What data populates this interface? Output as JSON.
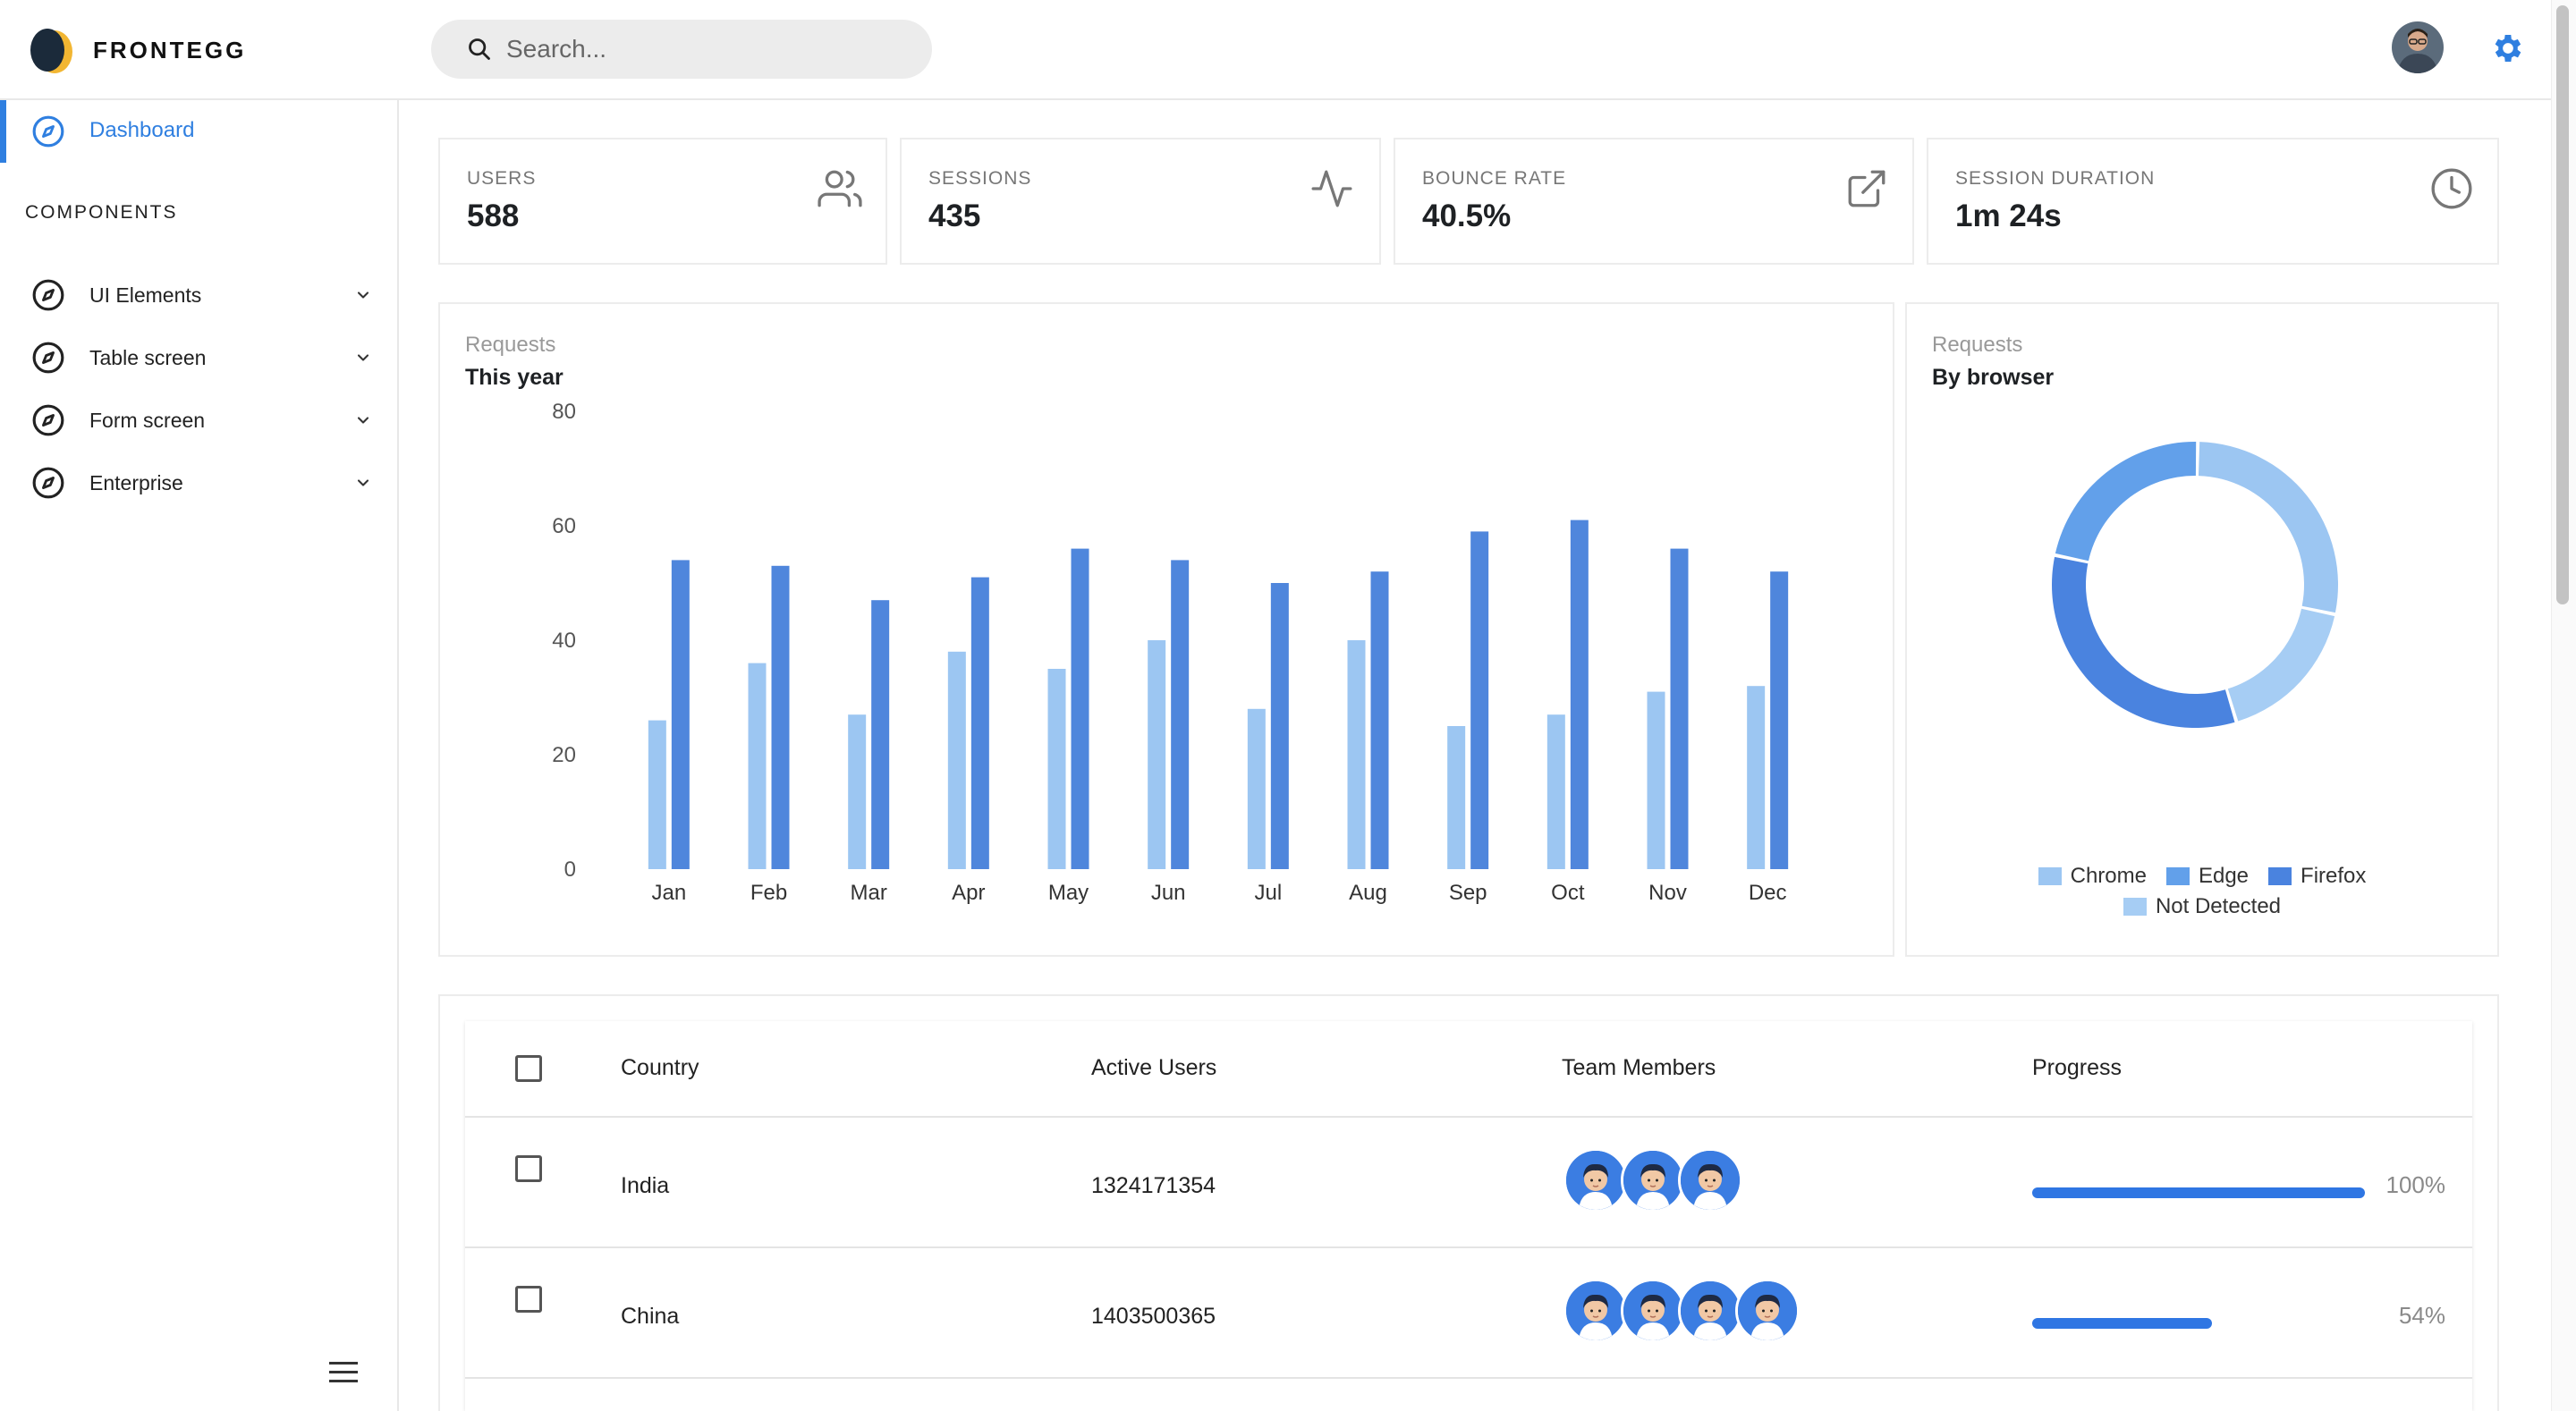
{
  "header": {
    "brand": "FRONTEGG",
    "search_placeholder": "Search..."
  },
  "sidebar": {
    "active_item": "Dashboard",
    "section_title": "COMPONENTS",
    "items": [
      {
        "label": "UI Elements"
      },
      {
        "label": "Table screen"
      },
      {
        "label": "Form screen"
      },
      {
        "label": "Enterprise"
      }
    ]
  },
  "stats": [
    {
      "label": "USERS",
      "value": "588",
      "icon": "users-icon"
    },
    {
      "label": "SESSIONS",
      "value": "435",
      "icon": "activity-icon"
    },
    {
      "label": "BOUNCE RATE",
      "value": "40.5%",
      "icon": "external-link-icon"
    },
    {
      "label": "SESSION DURATION",
      "value": "1m 24s",
      "icon": "clock-icon"
    }
  ],
  "requests_chart": {
    "subtitle": "Requests",
    "title": "This year"
  },
  "browser_chart": {
    "subtitle": "Requests",
    "title": "By browser"
  },
  "chart_data": [
    {
      "type": "bar",
      "title": "This year",
      "categories": [
        "Jan",
        "Feb",
        "Mar",
        "Apr",
        "May",
        "Jun",
        "Jul",
        "Aug",
        "Sep",
        "Oct",
        "Nov",
        "Dec"
      ],
      "series": [
        {
          "color": "#9cc6f2",
          "values": [
            26,
            36,
            27,
            38,
            35,
            40,
            28,
            40,
            25,
            27,
            31,
            32
          ]
        },
        {
          "color": "#4f86dc",
          "values": [
            54,
            53,
            47,
            51,
            56,
            54,
            50,
            52,
            59,
            61,
            56,
            52
          ]
        }
      ],
      "yticks": [
        0,
        20,
        40,
        60,
        80
      ],
      "ylim": [
        0,
        80
      ],
      "grid": false
    },
    {
      "type": "pie",
      "title": "By browser",
      "labels": [
        "Chrome",
        "Edge",
        "Firefox",
        "Not Detected"
      ],
      "values": [
        28,
        22,
        33,
        17
      ],
      "colors": [
        "#9cc6f2",
        "#62a0ea",
        "#4a83df",
        "#a6cdf4"
      ],
      "donut": true,
      "legend": "bottom"
    }
  ],
  "table": {
    "headers": [
      "Country",
      "Active Users",
      "Team Members",
      "Progress"
    ],
    "rows": [
      {
        "country": "India",
        "active_users": "1324171354",
        "team_members": 3,
        "progress": 100,
        "progress_label": "100%"
      },
      {
        "country": "China",
        "active_users": "1403500365",
        "team_members": 4,
        "progress": 54,
        "progress_label": "54%"
      }
    ]
  },
  "colors": {
    "accent": "#2f7fe0",
    "bar_light": "#9cc6f2",
    "bar_dark": "#4f86dc",
    "progress": "#2f76e3"
  }
}
